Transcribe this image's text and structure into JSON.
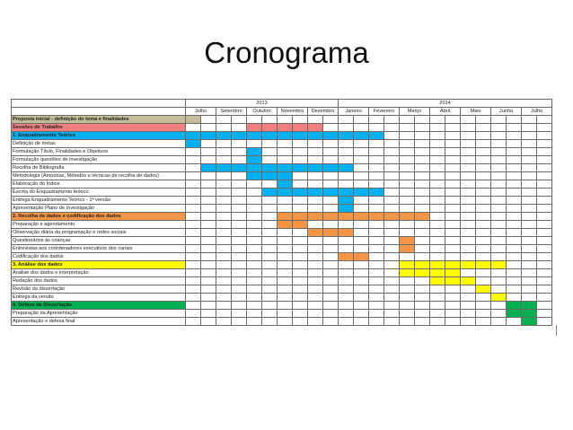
{
  "slide": {
    "title": "Cronograma"
  },
  "gantt": {
    "years": [
      {
        "label": "2013",
        "span": 10
      },
      {
        "label": "2014",
        "span": 14
      }
    ],
    "months": [
      "Julho",
      "Setembro",
      "Outubro",
      "Novembro",
      "Dezembro",
      "Janeiro",
      "Fevereiro",
      "Março",
      "Abril",
      "Maio",
      "Junho",
      "Julho"
    ],
    "colors": {
      "gray": "#c4bd97",
      "pink": "#f08080",
      "blue": "#00b0f0",
      "orange": "#f79646",
      "yellow": "#ffff00",
      "green": "#00b050"
    },
    "rows": [
      {
        "label": "Proposta inicial - definição do tema e finalidades",
        "header": true,
        "color": "gray",
        "bar": [
          0,
          1
        ]
      },
      {
        "label": "Sessões de Trabalho",
        "header": true,
        "color": "pink",
        "bar": [
          4,
          9
        ]
      },
      {
        "label": "1. Enquadramento Teórico",
        "header": true,
        "color": "blue",
        "bar": [
          0,
          13
        ]
      },
      {
        "label": "Definição de metas",
        "color": "blue",
        "bar": [
          0,
          1
        ]
      },
      {
        "label": "Formulação Título, Finalidades e Objetivos",
        "color": "blue",
        "bar": [
          4,
          5
        ]
      },
      {
        "label": "Formulação questões de investigação",
        "color": "blue",
        "bar": [
          4,
          5
        ]
      },
      {
        "label": "Recolha de Bibliografia",
        "color": "blue",
        "bar": [
          1,
          11
        ]
      },
      {
        "label": "Metodologia (Amostras, Métodos e técnicas de recolha de dados)",
        "color": "blue",
        "bar": [
          4,
          7
        ]
      },
      {
        "label": "Elaboração do Índice",
        "color": "blue",
        "bar": [
          6,
          7
        ]
      },
      {
        "label": "Escrita do Enquadramento teórico",
        "color": "blue",
        "bar": [
          5,
          13
        ]
      },
      {
        "label": "Entrega Enquadramento Teórico - 1ª versão",
        "color": "blue",
        "bar": [
          10,
          11
        ]
      },
      {
        "label": "Apresentação Plano de Investigação",
        "color": "blue",
        "bar": [
          10,
          11
        ]
      },
      {
        "label": "2. Recolha de dados e codificação dos dados",
        "header": true,
        "color": "orange",
        "bar": [
          6,
          16
        ]
      },
      {
        "label": "Preparação e agendamento",
        "color": "orange",
        "bar": [
          6,
          8
        ]
      },
      {
        "label": "Observação diária da programação e redes sociais",
        "color": "orange",
        "bar": [
          8,
          11
        ]
      },
      {
        "label": "Questionários às crianças",
        "color": "orange",
        "bar": [
          14,
          15
        ]
      },
      {
        "label": "Entrevistas aos coordenadores executivos dos canais",
        "color": "orange",
        "bar": [
          14,
          15
        ]
      },
      {
        "label": "Codificação dos dados",
        "color": "orange",
        "bar": [
          10,
          12
        ]
      },
      {
        "label": "3. Análise dos dados",
        "header": true,
        "color": "yellow",
        "bar": [
          14,
          21
        ]
      },
      {
        "label": "Análise dos dados e interpretação",
        "color": "yellow",
        "bar": [
          14,
          18
        ]
      },
      {
        "label": "Redação dos dados",
        "color": "yellow",
        "bar": [
          16,
          19
        ]
      },
      {
        "label": "Revisão da dissertação",
        "color": "yellow",
        "bar": [
          19,
          20
        ]
      },
      {
        "label": "Entrega da versão",
        "color": "yellow",
        "bar": [
          20,
          21
        ]
      },
      {
        "label": "4. Defesa da Dissertação",
        "header": true,
        "color": "green",
        "bar": [
          21,
          23
        ]
      },
      {
        "label": "Preparação da Apresentação",
        "color": "green",
        "bar": [
          21,
          23
        ]
      },
      {
        "label": "Apresentação e defesa final",
        "color": "green",
        "bar": [
          22,
          23
        ]
      }
    ]
  }
}
